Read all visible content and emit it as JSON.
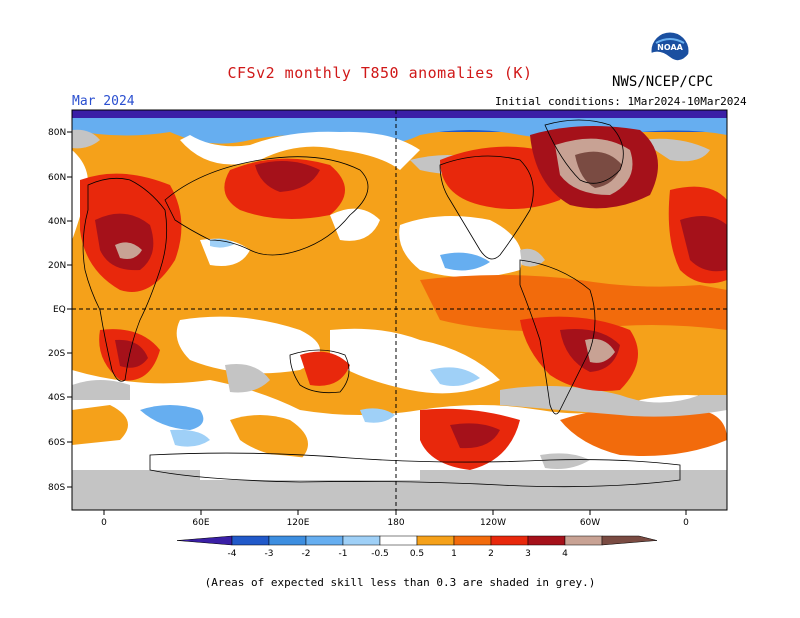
{
  "header": {
    "title": "CFSv2 monthly T850 anomalies (K)",
    "org": "NWS/NCEP/CPC",
    "month": "Mar 2024",
    "initial_conditions": "Initial conditions: 1Mar2024-10Mar2024",
    "logo_text": "NOAA"
  },
  "map": {
    "lat_labels": [
      "80N",
      "60N",
      "40N",
      "20N",
      "EQ",
      "20S",
      "40S",
      "60S",
      "80S"
    ],
    "lon_labels": [
      "0",
      "60E",
      "120E",
      "180",
      "120W",
      "60W",
      "0"
    ]
  },
  "colorbar": {
    "labels": [
      "-4",
      "-3",
      "-2",
      "-1",
      "-0.5",
      "0.5",
      "1",
      "2",
      "3",
      "4"
    ],
    "colors": [
      "#3a1fa6",
      "#2159c9",
      "#3d8ee0",
      "#66aef0",
      "#9fd0f7",
      "#ffffff",
      "#f5a11a",
      "#f26b0c",
      "#e8280c",
      "#a5111a",
      "#c8a294",
      "#7a4b42"
    ],
    "grey": "#c4c4c4"
  },
  "footnote": "(Areas of expected skill less than 0.3 are shaded in grey.)"
}
